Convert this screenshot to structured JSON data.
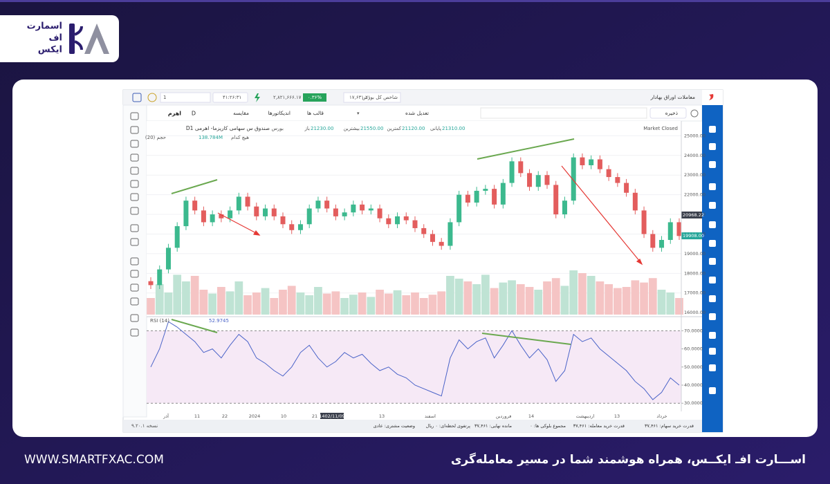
{
  "logo": {
    "line1": "اسمارت",
    "line2": "اف",
    "line3": "ایکس"
  },
  "footer": {
    "website": "WWW.SMARTFXAC.COM",
    "slogan": "اســـارت افـ ایکــس، همراه هوشمند شما در مسیر معامله‌گری"
  },
  "app": {
    "title": "معاملات اوراق بهادار",
    "index_name": "شاخص کل بورس",
    "index_value": "۱۷,۶۳۱.۲۱",
    "index_change": "۰.۳۶%",
    "index_points": "۲,۸۲۱,۶۶۶.۱۷",
    "clock": "۴۱:۲۶:۳۱",
    "search": "1",
    "toolbar": {
      "save": "ذخیره",
      "adjusted": "تعدیل شده",
      "templates": "قالب ها",
      "indicators": "اندیکاتورها",
      "compare": "مقایسه",
      "interval": "D",
      "symbol": "اهرم"
    },
    "legend": {
      "symbol": "Dصندوق س سهامی کاریزما- اهرمی 1",
      "market": "بورس",
      "close_label": "پایانی",
      "close": "21310.00",
      "low_label": "کمترین",
      "low": "21120.00",
      "high_label": "بیشترین",
      "high": "21550.00",
      "open_label": "باز",
      "open": "21230.00",
      "volume_label": "حجم (20)",
      "volume": "138.784M",
      "volume_ma": "هیچ کدام",
      "market_status": "Market Closed"
    },
    "status": [
      "قدرت خرید سهام: ۳۷,۴۶۱",
      "قدرت خرید معامله: ۳۷,۴۶۱",
      "مجموع بلوکی ها: ۰",
      "مانده نهایی: ۳۷,۴۶۱",
      "پرتفوی لحظه‌ای: ۰ ریال",
      "وضعیت مشتری: عادی"
    ],
    "version": "نسخه ۹.۲۰.۱"
  },
  "chart_data": [
    {
      "type": "candlestick",
      "open": [
        17600,
        17400,
        18200,
        19300,
        20400,
        21700,
        21200,
        20600,
        21000,
        20800,
        21200,
        21900,
        21400,
        20900,
        21300,
        20900,
        20500,
        20200,
        20500,
        21300,
        21700,
        21300,
        20900,
        21100,
        21500,
        21200,
        21300,
        20800,
        20500,
        20900,
        20700,
        20300,
        20000,
        19600,
        19400,
        20600,
        22000,
        21600,
        22200,
        22300,
        21500,
        22600,
        23700,
        23100,
        22400,
        23000,
        22500,
        21000,
        21700,
        23900,
        23500,
        23800,
        23300,
        22900,
        22600,
        22100,
        21200,
        20000,
        19300,
        19700,
        20600
      ],
      "high": [
        17800,
        18400,
        19500,
        20600,
        21900,
        21900,
        21400,
        21200,
        21200,
        21400,
        22100,
        22100,
        21600,
        21500,
        21500,
        21100,
        20700,
        20700,
        21500,
        21900,
        21900,
        21500,
        21300,
        21700,
        21700,
        21500,
        21500,
        21000,
        21100,
        21100,
        20900,
        20500,
        20200,
        19800,
        20800,
        22200,
        22200,
        22400,
        22500,
        22500,
        22800,
        23900,
        23900,
        23300,
        23200,
        23200,
        22700,
        21900,
        24100,
        24100,
        24000,
        24000,
        23500,
        23100,
        22800,
        22300,
        21400,
        20200,
        19900,
        20800,
        20800
      ],
      "low": [
        17200,
        17200,
        18000,
        19100,
        20200,
        21000,
        20400,
        20400,
        20600,
        20600,
        21000,
        21200,
        20700,
        20700,
        20700,
        20300,
        20000,
        20000,
        20300,
        21100,
        21100,
        20700,
        20700,
        20900,
        21000,
        21000,
        20600,
        20300,
        20300,
        20500,
        20100,
        19800,
        19400,
        19200,
        19200,
        20400,
        21400,
        21400,
        22000,
        21300,
        21300,
        22400,
        22900,
        22200,
        22200,
        22300,
        20800,
        20800,
        21500,
        23300,
        23300,
        23100,
        22700,
        22400,
        21900,
        21000,
        19800,
        19100,
        19100,
        19500,
        19700
      ],
      "close": [
        17400,
        18200,
        19300,
        20400,
        21700,
        21200,
        20600,
        21000,
        20800,
        21200,
        21900,
        21400,
        20900,
        21300,
        20900,
        20500,
        20200,
        20500,
        21300,
        21700,
        21300,
        20900,
        21100,
        21500,
        21200,
        21300,
        20800,
        20500,
        20900,
        20700,
        20300,
        20000,
        19600,
        19400,
        20600,
        22000,
        21600,
        22200,
        22300,
        21500,
        22600,
        23700,
        23100,
        22400,
        23000,
        22500,
        21000,
        21700,
        23900,
        23500,
        23800,
        23300,
        22900,
        22600,
        22100,
        21200,
        20000,
        19300,
        19700,
        20600,
        19900
      ],
      "volume": [
        30,
        55,
        40,
        72,
        60,
        70,
        45,
        38,
        50,
        42,
        60,
        35,
        40,
        48,
        30,
        45,
        52,
        40,
        35,
        50,
        38,
        42,
        30,
        36,
        40,
        32,
        45,
        38,
        44,
        35,
        40,
        30,
        36,
        42,
        70,
        65,
        60,
        55,
        72,
        48,
        58,
        62,
        55,
        50,
        45,
        60,
        66,
        52,
        80,
        75,
        70,
        60,
        55,
        48,
        50,
        62,
        58,
        66,
        45,
        40,
        30
      ],
      "ylim": [
        15900,
        25400
      ],
      "volume_ylim": [
        0,
        100
      ],
      "yticks": [
        {
          "value": 16000,
          "label": "16000.00"
        },
        {
          "value": 17000,
          "label": "17000.00"
        },
        {
          "value": 18000,
          "label": "18000.00"
        },
        {
          "value": 19000,
          "label": "19000.00"
        },
        {
          "value": 20000,
          "label": "20000.00"
        },
        {
          "value": 21000,
          "label": "21000.00"
        },
        {
          "value": 22000,
          "label": "22000.00"
        },
        {
          "value": 23000,
          "label": "23000.00"
        },
        {
          "value": 24000,
          "label": "24000.00"
        },
        {
          "value": 25000,
          "label": "25000.00"
        }
      ],
      "price_markers": [
        {
          "value": 20968.22,
          "label": "20968.22",
          "color": "#3a3f4b"
        },
        {
          "value": 19908,
          "label": "19908.00",
          "color": "#26a69a"
        }
      ],
      "up_color": "#3cb98e",
      "down_color": "#e35d5d",
      "grid": true
    },
    {
      "type": "line",
      "name": "RSI (14)",
      "value_label": "52.9745",
      "color": "#4a63c8",
      "values": [
        50,
        60,
        75,
        72,
        68,
        64,
        58,
        60,
        55,
        62,
        68,
        64,
        55,
        52,
        48,
        45,
        50,
        58,
        62,
        55,
        50,
        53,
        58,
        55,
        57,
        52,
        48,
        50,
        46,
        44,
        40,
        38,
        36,
        34,
        55,
        65,
        60,
        64,
        66,
        55,
        62,
        70,
        62,
        55,
        60,
        54,
        42,
        48,
        68,
        64,
        66,
        60,
        56,
        52,
        48,
        42,
        38,
        32,
        36,
        44,
        40
      ],
      "ylim": [
        25.5,
        77
      ],
      "yticks": [
        {
          "value": 30,
          "label": "30.0000"
        },
        {
          "value": 40,
          "label": "40.0000"
        },
        {
          "value": 50,
          "label": "50.0000"
        },
        {
          "value": 60,
          "label": "60.0000"
        },
        {
          "value": 70,
          "label": "70.0000"
        }
      ],
      "levels": [
        30,
        70
      ],
      "x_labels": [
        "آذر",
        "11",
        "22",
        "2024",
        "10",
        "21",
        "1402/11/09",
        "13",
        "اسفند",
        "فروردین",
        "14",
        "اردیبهشت",
        "13",
        "خرداد"
      ]
    }
  ]
}
